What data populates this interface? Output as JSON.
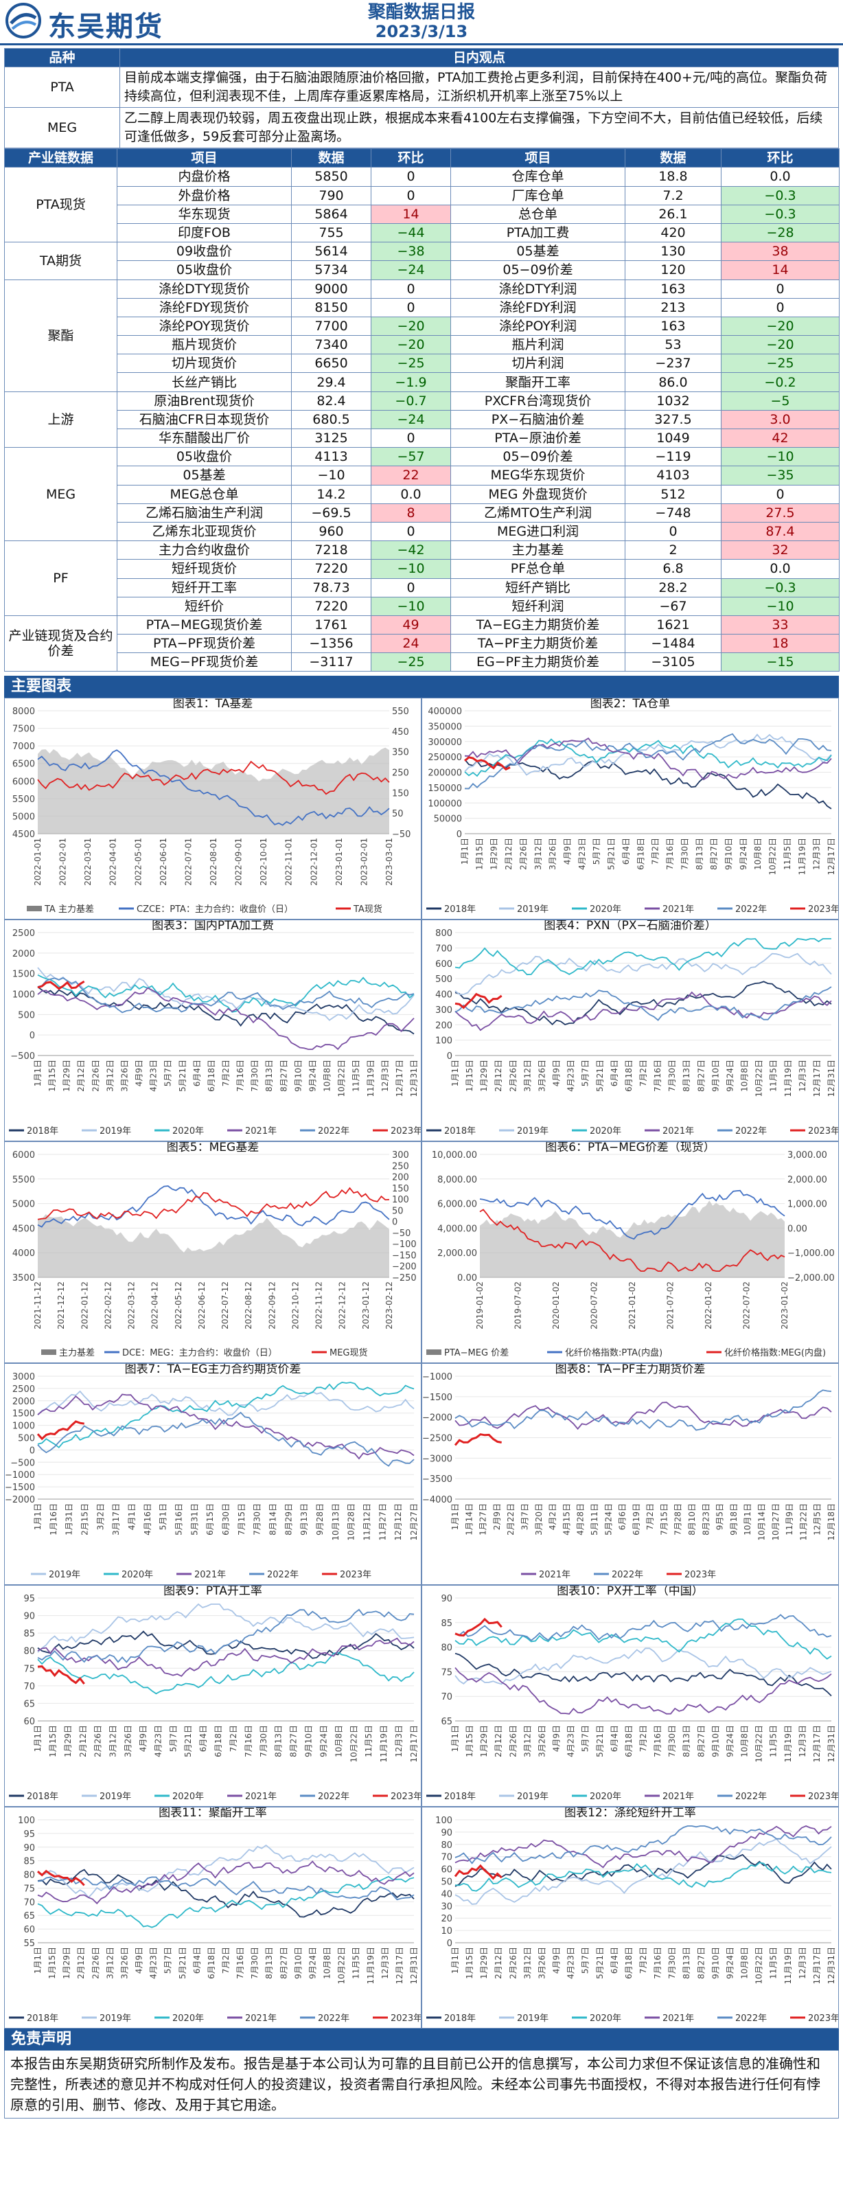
{
  "header": {
    "brand": "东吴期货",
    "title": "聚酯数据日报",
    "date": "2023/3/13"
  },
  "views": {
    "col1": "品种",
    "col2": "日内观点",
    "rows": [
      {
        "name": "PTA",
        "text": "目前成本端支撑偏强，由于石脑油跟随原油价格回撤，PTA加工费抢占更多利润，目前保持在400+元/吨的高位。聚酯负荷持续高位，但利润表现不佳，上周库存重返累库格局，江浙织机开机率上涨至75%以上"
      },
      {
        "name": "MEG",
        "text": "乙二醇上周表现仍较弱，周五夜盘出现止跌，根据成本来看4100左右支撑偏强，下方空间不大，目前估值已经较低，后续可逢低做多，59反套可部分止盈离场。"
      }
    ]
  },
  "table": {
    "headers": [
      "产业链数据",
      "项目",
      "数据",
      "环比",
      "项目",
      "数据",
      "环比"
    ],
    "groups": [
      {
        "cat": "PTA现货",
        "rows": [
          [
            "内盘价格",
            "5850",
            "0",
            "仓库仓单",
            "18.8",
            "0.0"
          ],
          [
            "外盘价格",
            "790",
            "0",
            "厂库仓单",
            "7.2",
            "−0.3"
          ],
          [
            "华东现货",
            "5864",
            "14",
            "总仓单",
            "26.1",
            "−0.3"
          ],
          [
            "印度FOB",
            "755",
            "−44",
            "PTA加工费",
            "420",
            "−28"
          ]
        ]
      },
      {
        "cat": "TA期货",
        "rows": [
          [
            "09收盘价",
            "5614",
            "−38",
            "05基差",
            "130",
            "38"
          ],
          [
            "05收盘价",
            "5734",
            "−24",
            "05−09价差",
            "120",
            "14"
          ]
        ]
      },
      {
        "cat": "聚酯",
        "rows": [
          [
            "涤纶DTY现货价",
            "9000",
            "0",
            "涤纶DTY利润",
            "163",
            "0"
          ],
          [
            "涤纶FDY现货价",
            "8150",
            "0",
            "涤纶FDY利润",
            "213",
            "0"
          ],
          [
            "涤纶POY现货价",
            "7700",
            "−20",
            "涤纶POY利润",
            "163",
            "−20"
          ],
          [
            "瓶片现货价",
            "7340",
            "−20",
            "瓶片利润",
            "53",
            "−20"
          ],
          [
            "切片现货价",
            "6650",
            "−25",
            "切片利润",
            "−237",
            "−25"
          ],
          [
            "长丝产销比",
            "29.4",
            "−1.9",
            "聚酯开工率",
            "86.0",
            "−0.2"
          ]
        ]
      },
      {
        "cat": "上游",
        "rows": [
          [
            "原油Brent现货价",
            "82.4",
            "−0.7",
            "PXCFR台湾现货价",
            "1032",
            "−5"
          ],
          [
            "石脑油CFR日本现货价",
            "680.5",
            "−24",
            "PX−石脑油价差",
            "327.5",
            "3.0"
          ],
          [
            "华东醋酸出厂价",
            "3125",
            "0",
            "PTA−原油价差",
            "1049",
            "42"
          ]
        ]
      },
      {
        "cat": "MEG",
        "rows": [
          [
            "05收盘价",
            "4113",
            "−57",
            "05−09价差",
            "−119",
            "−10"
          ],
          [
            "05基差",
            "−10",
            "22",
            "MEG华东现货价",
            "4103",
            "−35"
          ],
          [
            "MEG总仓单",
            "14.2",
            "0.0",
            "MEG 外盘现货价",
            "512",
            "0"
          ],
          [
            "乙烯石脑油生产利润",
            "−69.5",
            "8",
            "乙烯MTO生产利润",
            "−748",
            "27.5"
          ],
          [
            "乙烯东北亚现货价",
            "960",
            "0",
            "MEG进口利润",
            "0",
            "87.4"
          ]
        ]
      },
      {
        "cat": "PF",
        "rows": [
          [
            "主力合约收盘价",
            "7218",
            "−42",
            "主力基差",
            "2",
            "32"
          ],
          [
            "短纤现货价",
            "7220",
            "−10",
            "PF总仓单",
            "6.8",
            "0.0"
          ],
          [
            "短纤开工率",
            "78.73",
            "0",
            "短纤产销比",
            "28.2",
            "−0.3"
          ],
          [
            "短纤价",
            "7220",
            "−10",
            "短纤利润",
            "−67",
            "−10"
          ]
        ]
      },
      {
        "cat": "产业链现货及合约价差",
        "rows": [
          [
            "PTA−MEG现货价差",
            "1761",
            "49",
            "TA−EG主力期货价差",
            "1621",
            "33"
          ],
          [
            "PTA−PF现货价差",
            "−1356",
            "24",
            "TA−PF主力期货价差",
            "−1484",
            "18"
          ],
          [
            "MEG−PF现货价差",
            "−3117",
            "−25",
            "EG−PF主力期货价差",
            "−3105",
            "−15"
          ]
        ]
      }
    ]
  },
  "charts_section": "主要图表",
  "charts": [
    {
      "title": "图表1：TA基差",
      "legend": [
        "TA 主力基差",
        "CZCE：PTA：主力合约：收盘价（日）",
        "TA现货"
      ],
      "yleft": [
        "8000",
        "7500",
        "7000",
        "6500",
        "6000",
        "5500",
        "5000",
        "4500"
      ],
      "yright": [
        "550",
        "450",
        "350",
        "250",
        "150",
        "50",
        "−50"
      ],
      "x": [
        "2022-01-01",
        "2022-02-01",
        "2022-03-01",
        "2022-04-01",
        "2022-05-01",
        "2022-06-01",
        "2022-07-01",
        "2022-08-01",
        "2022-09-01",
        "2022-10-01",
        "2022-11-01",
        "2022-12-01",
        "2023-01-01",
        "2023-02-01",
        "2023-03-01"
      ]
    },
    {
      "title": "图表2：TA仓单",
      "legend": [
        "2018年",
        "2019年",
        "2020年",
        "2021年",
        "2022年",
        "2023年"
      ],
      "yleft": [
        "400000",
        "350000",
        "300000",
        "250000",
        "200000",
        "150000",
        "100000",
        "50000",
        "0"
      ],
      "x": [
        "1月1日",
        "1月15日",
        "1月29日",
        "2月12日",
        "2月26日",
        "3月12日",
        "3月26日",
        "4月9日",
        "4月23日",
        "5月7日",
        "5月21日",
        "6月4日",
        "6月18日",
        "7月2日",
        "7月16日",
        "7月30日",
        "8月13日",
        "8月27日",
        "9月10日",
        "9月24日",
        "10月8日",
        "10月22日",
        "11月5日",
        "11月19日",
        "12月3日",
        "12月17日"
      ]
    },
    {
      "title": "图表3：国内PTA加工费",
      "legend": [
        "2018年",
        "2019年",
        "2020年",
        "2021年",
        "2022年",
        "2023年"
      ],
      "yleft": [
        "2500",
        "2000",
        "1500",
        "1000",
        "500",
        "0",
        "−500"
      ],
      "x": [
        "1月1日",
        "1月15日",
        "1月29日",
        "2月12日",
        "2月26日",
        "3月12日",
        "3月26日",
        "4月9日",
        "4月23日",
        "5月7日",
        "5月21日",
        "6月4日",
        "6月18日",
        "7月2日",
        "7月16日",
        "7月30日",
        "8月13日",
        "8月27日",
        "9月10日",
        "9月24日",
        "10月8日",
        "10月22日",
        "11月5日",
        "11月19日",
        "12月3日",
        "12月17日",
        "12月31日"
      ]
    },
    {
      "title": "图表4：PXN（PX−石脑油价差）",
      "legend": [
        "2018年",
        "2019年",
        "2020年",
        "2021年",
        "2022年",
        "2023年"
      ],
      "yleft": [
        "800",
        "700",
        "600",
        "500",
        "400",
        "300",
        "200",
        "100",
        "0"
      ],
      "x": [
        "1月1日",
        "1月15日",
        "1月29日",
        "2月12日",
        "2月26日",
        "3月12日",
        "3月26日",
        "4月9日",
        "4月23日",
        "5月7日",
        "5月21日",
        "6月4日",
        "6月18日",
        "7月2日",
        "7月16日",
        "7月30日",
        "8月13日",
        "8月27日",
        "9月10日",
        "9月24日",
        "10月8日",
        "10月22日",
        "11月5日",
        "11月19日",
        "12月3日",
        "12月17日",
        "12月31日"
      ]
    },
    {
      "title": "图表5：MEG基差",
      "legend": [
        "主力基差",
        "DCE：MEG：主力合约：收盘价（日）",
        "MEG现货"
      ],
      "yleft": [
        "6000",
        "5500",
        "5000",
        "4500",
        "4000",
        "3500"
      ],
      "yright": [
        "300",
        "250",
        "200",
        "150",
        "100",
        "50",
        "0",
        "−50",
        "−100",
        "−150",
        "−200",
        "−250"
      ],
      "x": [
        "2021-11-12",
        "2021-12-12",
        "2022-01-12",
        "2022-02-12",
        "2022-03-12",
        "2022-04-12",
        "2022-05-12",
        "2022-06-12",
        "2022-07-12",
        "2022-08-12",
        "2022-09-12",
        "2022-10-12",
        "2022-11-12",
        "2022-12-12",
        "2023-01-12",
        "2023-02-12"
      ]
    },
    {
      "title": "图表6：PTA−MEG价差（现货）",
      "legend": [
        "PTA−MEG 价差",
        "化纤价格指数:PTA(内盘)",
        "化纤价格指数:MEG(内盘)"
      ],
      "yleft": [
        "10,000.00",
        "8,000.00",
        "6,000.00",
        "4,000.00",
        "2,000.00",
        "0.00"
      ],
      "yright": [
        "3,000.00",
        "2,000.00",
        "1,000.00",
        "0.00",
        "−1,000.00",
        "−2,000.00"
      ],
      "x": [
        "2019-01-02",
        "2019-07-02",
        "2020-01-02",
        "2020-07-02",
        "2021-01-02",
        "2021-07-02",
        "2022-01-02",
        "2022-07-02",
        "2023-01-02"
      ]
    },
    {
      "title": "图表7：TA−EG主力合约期货价差",
      "legend": [
        "2019年",
        "2020年",
        "2021年",
        "2022年",
        "2023年"
      ],
      "yleft": [
        "3000",
        "2500",
        "2000",
        "1500",
        "1000",
        "500",
        "0",
        "−500",
        "−1000",
        "−1500",
        "−2000"
      ],
      "x": [
        "1月1日",
        "1月16日",
        "1月31日",
        "2月15日",
        "3月2日",
        "3月17日",
        "4月1日",
        "4月16日",
        "5月1日",
        "5月16日",
        "5月31日",
        "6月15日",
        "6月30日",
        "7月15日",
        "7月30日",
        "8月14日",
        "8月29日",
        "9月13日",
        "9月28日",
        "10月13日",
        "10月28日",
        "11月12日",
        "11月27日",
        "12月12日",
        "12月27日"
      ]
    },
    {
      "title": "图表8：TA−PF主力期货价差",
      "legend": [
        "2021年",
        "2022年",
        "2023年"
      ],
      "yleft": [
        "−1000",
        "−1500",
        "−2000",
        "−2500",
        "−3000",
        "−3500",
        "−4000"
      ],
      "x": [
        "1月1日",
        "1月14日",
        "1月27日",
        "2月9日",
        "2月22日",
        "3月7日",
        "3月20日",
        "4月2日",
        "4月15日",
        "4月28日",
        "5月11日",
        "5月24日",
        "6月6日",
        "6月19日",
        "7月2日",
        "7月15日",
        "7月28日",
        "8月10日",
        "8月23日",
        "9月5日",
        "9月18日",
        "10月1日",
        "10月14日",
        "10月27日",
        "11月9日",
        "11月22日",
        "12月5日",
        "12月18日"
      ]
    },
    {
      "title": "图表9：PTA开工率",
      "legend": [
        "2018年",
        "2019年",
        "2020年",
        "2021年",
        "2022年",
        "2023年"
      ],
      "yleft": [
        "95",
        "90",
        "85",
        "80",
        "75",
        "70",
        "65",
        "60"
      ],
      "x": [
        "1月1日",
        "1月15日",
        "1月29日",
        "2月12日",
        "2月26日",
        "3月12日",
        "3月26日",
        "4月9日",
        "4月23日",
        "5月7日",
        "5月21日",
        "6月4日",
        "6月18日",
        "7月2日",
        "7月16日",
        "7月30日",
        "8月13日",
        "8月27日",
        "9月10日",
        "9月24日",
        "10月8日",
        "10月22日",
        "11月5日",
        "11月19日",
        "12月3日",
        "12月17日"
      ]
    },
    {
      "title": "图表10：PX开工率（中国）",
      "legend": [
        "2018年",
        "2019年",
        "2020年",
        "2021年",
        "2022年",
        "2023年"
      ],
      "yleft": [
        "90",
        "85",
        "80",
        "75",
        "70",
        "65"
      ],
      "x": [
        "1月1日",
        "1月15日",
        "1月29日",
        "2月12日",
        "2月26日",
        "3月12日",
        "3月26日",
        "4月9日",
        "4月23日",
        "5月7日",
        "5月21日",
        "6月4日",
        "6月18日",
        "7月2日",
        "7月16日",
        "7月30日",
        "8月13日",
        "8月27日",
        "9月10日",
        "9月24日",
        "10月8日",
        "10月22日",
        "11月5日",
        "11月19日",
        "12月3日",
        "12月17日",
        "12月31日"
      ]
    },
    {
      "title": "图表11：聚酯开工率",
      "legend": [
        "2018年",
        "2019年",
        "2020年",
        "2021年",
        "2022年",
        "2023年"
      ],
      "yleft": [
        "100",
        "95",
        "90",
        "85",
        "80",
        "75",
        "70",
        "65",
        "60",
        "55"
      ],
      "x": [
        "1月1日",
        "1月15日",
        "1月29日",
        "2月12日",
        "2月26日",
        "3月12日",
        "3月26日",
        "4月9日",
        "4月23日",
        "5月7日",
        "5月21日",
        "6月4日",
        "6月18日",
        "7月2日",
        "7月16日",
        "7月30日",
        "8月13日",
        "8月27日",
        "9月10日",
        "9月24日",
        "10月8日",
        "10月22日",
        "11月5日",
        "11月19日",
        "12月3日",
        "12月17日",
        "12月31日"
      ]
    },
    {
      "title": "图表12：涤纶短纤开工率",
      "legend": [
        "2018年",
        "2019年",
        "2020年",
        "2021年",
        "2022年",
        "2023年"
      ],
      "yleft": [
        "100",
        "90",
        "80",
        "70",
        "60",
        "50",
        "40",
        "30",
        "20",
        "10",
        "0"
      ],
      "x": [
        "1月1日",
        "1月15日",
        "1月29日",
        "2月12日",
        "2月26日",
        "3月12日",
        "3月26日",
        "4月9日",
        "4月23日",
        "5月7日",
        "5月21日",
        "6月4日",
        "6月18日",
        "7月2日",
        "7月16日",
        "7月30日",
        "8月13日",
        "8月27日",
        "9月10日",
        "9月24日",
        "10月8日",
        "10月22日",
        "11月5日",
        "11月19日",
        "12月3日",
        "12月17日",
        "12月31日"
      ]
    }
  ],
  "disclaimer": {
    "title": "免责声明",
    "text": "本报告由东吴期货研究所制作及发布。报告是基于本公司认为可靠的且目前已公开的信息撰写，本公司力求但不保证该信息的准确性和完整性，所表述的意见并不构成对任何人的投资建议，投资者需自行承担风险。未经本公司事先书面授权，不得对本报告进行任何有悖原意的引用、删节、修改、及用于其它用途。"
  },
  "colors": {
    "accent": "#1f5597",
    "pos_bg": "#ffc7ce",
    "neg_bg": "#c6efce"
  },
  "series_colors": {
    "2018年": "#1f3864",
    "2019年": "#a9c4e6",
    "2020年": "#2eb8c9",
    "2021年": "#7a4fa3",
    "2022年": "#5a8bc4",
    "2023年": "#e02020"
  }
}
